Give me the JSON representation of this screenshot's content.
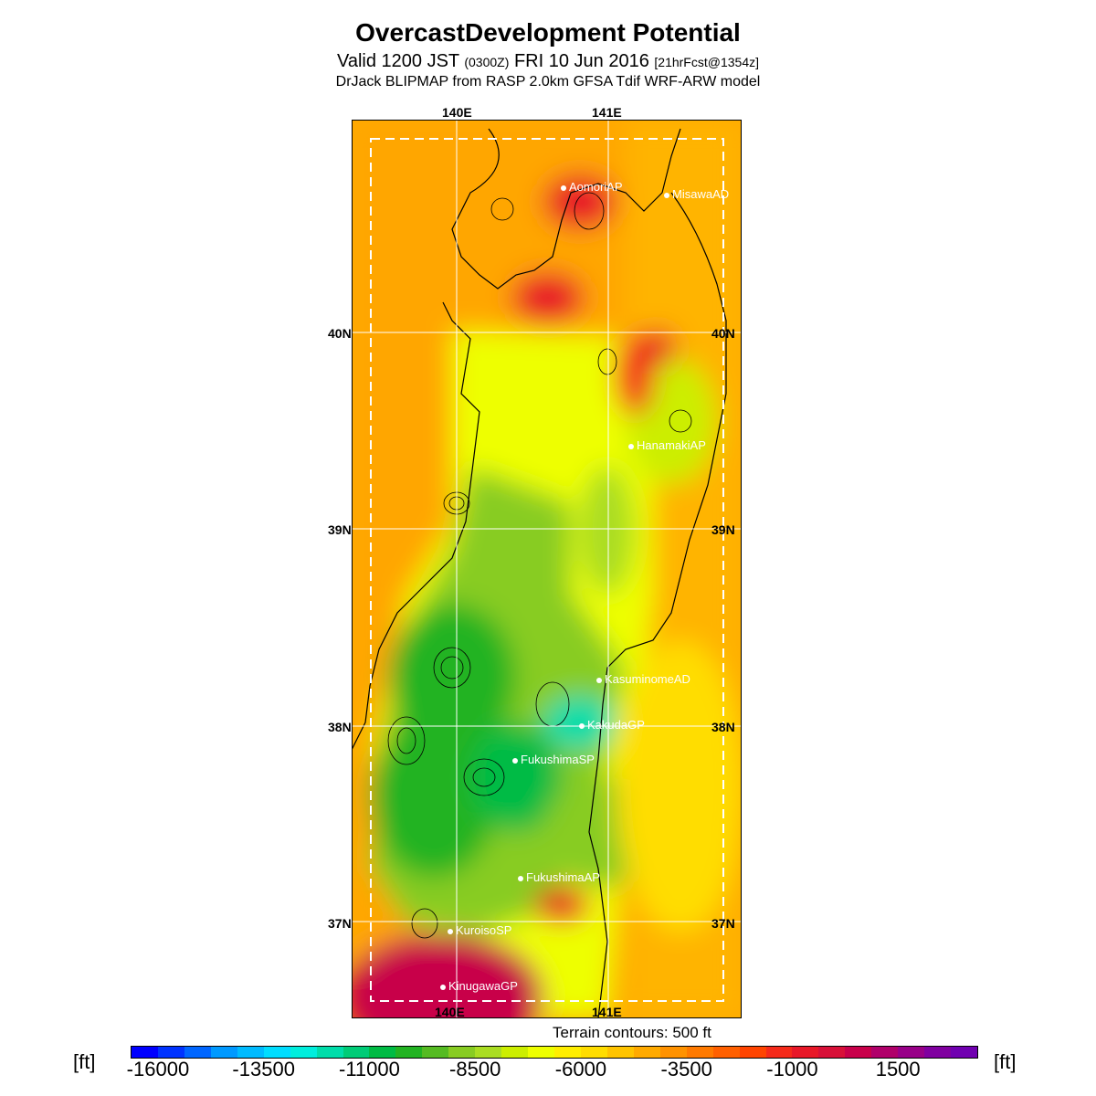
{
  "header": {
    "title": "OvercastDevelopment Potential",
    "valid_main": "Valid 1200 JST",
    "valid_utc": "(0300Z)",
    "valid_date": "FRI 10 Jun 2016",
    "forecast": "[21hrFcst@1354z]",
    "subtitle": "DrJack BLIPMAP from RASP 2.0km GFSA Tdif WRF-ARW model"
  },
  "map": {
    "lon_labels_top": [
      "140E",
      "141E"
    ],
    "lon_labels_bottom": [
      "140E",
      "141E"
    ],
    "lat_labels_left": [
      "40N",
      "39N",
      "38N",
      "37N"
    ],
    "lat_labels_right": [
      "40N",
      "39N",
      "38N",
      "37N"
    ],
    "stations": [
      "AomoriAP",
      "MisawaAD",
      "HanamakiAP",
      "KasuminomeAD",
      "KakudaGP",
      "FukushimaSP",
      "FukushimaAP",
      "KuroisoSP",
      "KinugawaGP"
    ],
    "terrain_note": "Terrain contours: 500 ft"
  },
  "colorbar": {
    "unit": "[ft]",
    "tick_labels": [
      "-16000",
      "-13500",
      "-11000",
      "-8500",
      "-6000",
      "-3500",
      "-1000",
      "1500"
    ],
    "colors": [
      "#0000ff",
      "#0033ff",
      "#0066ff",
      "#0099ff",
      "#00bbff",
      "#00ddff",
      "#00eedd",
      "#00ddaa",
      "#00cc77",
      "#00bb44",
      "#22b322",
      "#55bb22",
      "#88cc22",
      "#aadd22",
      "#ccee00",
      "#eeff00",
      "#ffee00",
      "#ffdd00",
      "#ffc400",
      "#ffaa00",
      "#ff9200",
      "#ff7a00",
      "#ff6000",
      "#ff4400",
      "#f52a1a",
      "#e81828",
      "#d81038",
      "#c8004a",
      "#b0006a",
      "#980088",
      "#8000a0",
      "#7000b0"
    ]
  }
}
